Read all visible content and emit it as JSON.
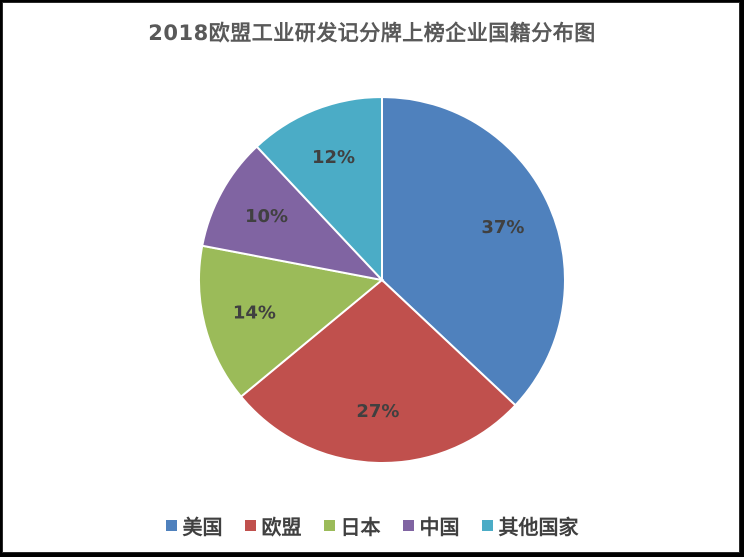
{
  "chart_data": {
    "type": "pie",
    "title": "2018欧盟工业研发记分牌上榜企业国籍分布图",
    "categories": [
      "美国",
      "欧盟",
      "日本",
      "中国",
      "其他国家"
    ],
    "values": [
      37,
      27,
      14,
      10,
      12
    ],
    "value_labels": [
      "37%",
      "27%",
      "14%",
      "10%",
      "12%"
    ],
    "colors": [
      "#4F81BD",
      "#C0504D",
      "#9BBB59",
      "#8064A2",
      "#4BACC6"
    ],
    "legend_position": "bottom",
    "start_angle": "12 o'clock, clockwise"
  }
}
